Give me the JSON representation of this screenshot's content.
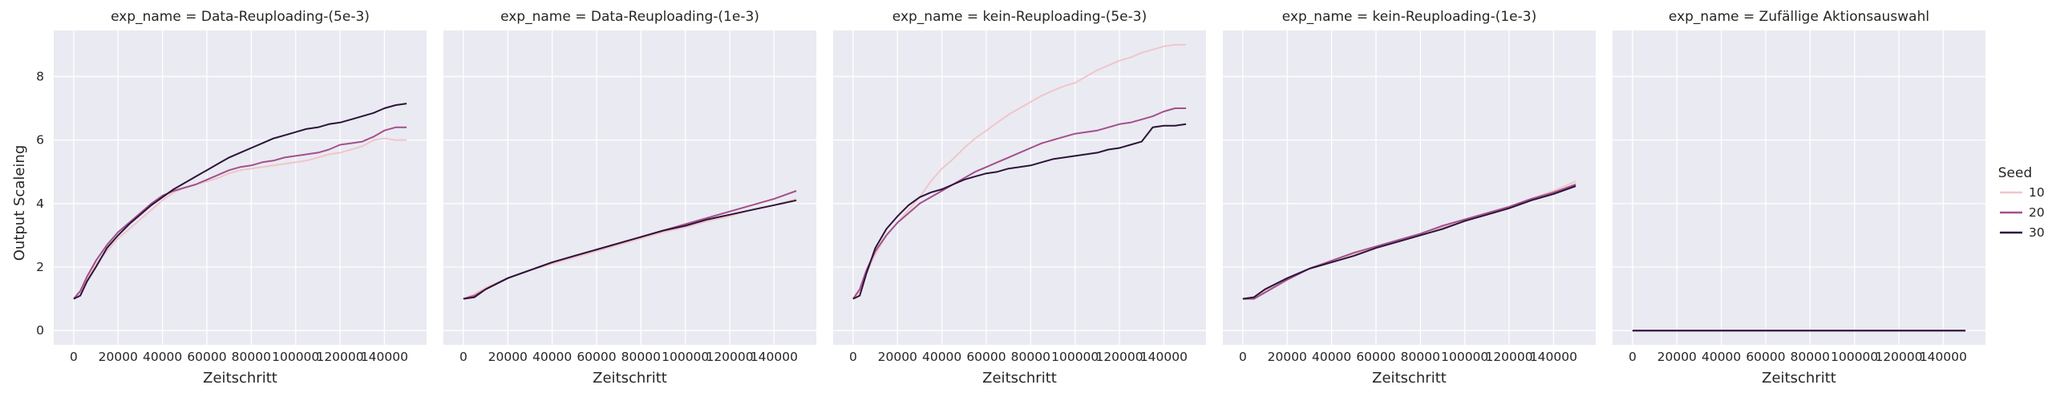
{
  "chart_data": {
    "type": "line",
    "facet_var": "exp_name",
    "xlabel": "Zeitschritt",
    "ylabel": "Output Scaleing",
    "xlim": [
      -9000,
      159000
    ],
    "ylim": [
      -0.45,
      9.45
    ],
    "xticks": [
      0,
      20000,
      40000,
      60000,
      80000,
      100000,
      120000,
      140000
    ],
    "yticks": [
      0,
      2,
      4,
      6,
      8
    ],
    "grid": true,
    "legend": {
      "title": "Seed",
      "placement": "right",
      "entries": [
        {
          "label": "10",
          "color": "#f0c6c9"
        },
        {
          "label": "20",
          "color": "#a3508c"
        },
        {
          "label": "30",
          "color": "#2b1339"
        }
      ]
    },
    "panels": [
      {
        "title": "exp_name = Data-Reuploading-(5e-3)",
        "series": [
          {
            "name": "10",
            "x": [
              0,
              3000,
              6000,
              10000,
              15000,
              20000,
              25000,
              30000,
              35000,
              40000,
              45000,
              50000,
              55000,
              60000,
              65000,
              70000,
              75000,
              80000,
              85000,
              90000,
              95000,
              100000,
              105000,
              110000,
              115000,
              120000,
              125000,
              130000,
              135000,
              140000,
              145000,
              150000
            ],
            "y": [
              1.0,
              1.2,
              1.6,
              2.1,
              2.5,
              2.9,
              3.2,
              3.5,
              3.8,
              4.1,
              4.35,
              4.5,
              4.6,
              4.7,
              4.8,
              4.95,
              5.05,
              5.1,
              5.15,
              5.2,
              5.25,
              5.3,
              5.35,
              5.45,
              5.55,
              5.6,
              5.7,
              5.8,
              6.0,
              6.05,
              6.0,
              6.0
            ]
          },
          {
            "name": "20",
            "x": [
              0,
              3000,
              6000,
              10000,
              15000,
              20000,
              25000,
              30000,
              35000,
              40000,
              45000,
              50000,
              55000,
              60000,
              65000,
              70000,
              75000,
              80000,
              85000,
              90000,
              95000,
              100000,
              105000,
              110000,
              115000,
              120000,
              125000,
              130000,
              135000,
              140000,
              145000,
              150000
            ],
            "y": [
              1.0,
              1.25,
              1.7,
              2.2,
              2.7,
              3.1,
              3.4,
              3.7,
              4.0,
              4.25,
              4.4,
              4.5,
              4.6,
              4.75,
              4.9,
              5.05,
              5.15,
              5.2,
              5.3,
              5.35,
              5.45,
              5.5,
              5.55,
              5.6,
              5.7,
              5.85,
              5.9,
              5.95,
              6.1,
              6.3,
              6.4,
              6.4
            ]
          },
          {
            "name": "30",
            "x": [
              0,
              3000,
              6000,
              10000,
              15000,
              20000,
              25000,
              30000,
              35000,
              40000,
              45000,
              50000,
              55000,
              60000,
              65000,
              70000,
              75000,
              80000,
              85000,
              90000,
              95000,
              100000,
              105000,
              110000,
              115000,
              120000,
              125000,
              130000,
              135000,
              140000,
              145000,
              150000
            ],
            "y": [
              1.0,
              1.1,
              1.55,
              2.0,
              2.6,
              3.0,
              3.35,
              3.65,
              3.95,
              4.2,
              4.45,
              4.65,
              4.85,
              5.05,
              5.25,
              5.45,
              5.6,
              5.75,
              5.9,
              6.05,
              6.15,
              6.25,
              6.35,
              6.4,
              6.5,
              6.55,
              6.65,
              6.75,
              6.85,
              7.0,
              7.1,
              7.15
            ]
          }
        ]
      },
      {
        "title": "exp_name = Data-Reuploading-(1e-3)",
        "series": [
          {
            "name": "10",
            "x": [
              0,
              5000,
              10000,
              20000,
              30000,
              40000,
              50000,
              60000,
              70000,
              80000,
              90000,
              100000,
              110000,
              120000,
              130000,
              140000,
              150000
            ],
            "y": [
              1.0,
              1.15,
              1.35,
              1.65,
              1.9,
              2.1,
              2.3,
              2.5,
              2.7,
              2.9,
              3.1,
              3.25,
              3.45,
              3.6,
              3.8,
              3.95,
              4.15
            ]
          },
          {
            "name": "20",
            "x": [
              0,
              5000,
              10000,
              20000,
              30000,
              40000,
              50000,
              60000,
              70000,
              80000,
              90000,
              100000,
              110000,
              120000,
              130000,
              140000,
              150000
            ],
            "y": [
              1.0,
              1.1,
              1.3,
              1.65,
              1.9,
              2.15,
              2.35,
              2.55,
              2.75,
              2.95,
              3.15,
              3.35,
              3.55,
              3.75,
              3.95,
              4.15,
              4.4
            ]
          },
          {
            "name": "30",
            "x": [
              0,
              5000,
              10000,
              20000,
              30000,
              40000,
              50000,
              60000,
              70000,
              80000,
              90000,
              100000,
              110000,
              120000,
              130000,
              140000,
              150000
            ],
            "y": [
              1.0,
              1.05,
              1.3,
              1.65,
              1.9,
              2.15,
              2.35,
              2.55,
              2.75,
              2.95,
              3.15,
              3.3,
              3.5,
              3.65,
              3.8,
              3.95,
              4.1
            ]
          }
        ]
      },
      {
        "title": "exp_name = kein-Reuploading-(5e-3)",
        "series": [
          {
            "name": "10",
            "x": [
              0,
              3000,
              6000,
              10000,
              15000,
              20000,
              25000,
              30000,
              35000,
              40000,
              45000,
              50000,
              55000,
              60000,
              65000,
              70000,
              75000,
              80000,
              85000,
              90000,
              95000,
              100000,
              105000,
              110000,
              115000,
              120000,
              125000,
              130000,
              135000,
              140000,
              145000,
              150000
            ],
            "y": [
              1.0,
              1.2,
              1.8,
              2.4,
              3.0,
              3.4,
              3.8,
              4.2,
              4.7,
              5.1,
              5.4,
              5.75,
              6.05,
              6.3,
              6.55,
              6.8,
              7.0,
              7.2,
              7.4,
              7.55,
              7.7,
              7.8,
              8.0,
              8.2,
              8.35,
              8.5,
              8.6,
              8.75,
              8.85,
              8.95,
              9.0,
              9.0
            ]
          },
          {
            "name": "20",
            "x": [
              0,
              3000,
              6000,
              10000,
              15000,
              20000,
              25000,
              30000,
              35000,
              40000,
              45000,
              50000,
              55000,
              60000,
              65000,
              70000,
              75000,
              80000,
              85000,
              90000,
              95000,
              100000,
              105000,
              110000,
              115000,
              120000,
              125000,
              130000,
              135000,
              140000,
              145000,
              150000
            ],
            "y": [
              1.0,
              1.3,
              1.9,
              2.5,
              3.0,
              3.4,
              3.7,
              4.0,
              4.2,
              4.4,
              4.6,
              4.8,
              5.0,
              5.15,
              5.3,
              5.45,
              5.6,
              5.75,
              5.9,
              6.0,
              6.1,
              6.2,
              6.25,
              6.3,
              6.4,
              6.5,
              6.55,
              6.65,
              6.75,
              6.9,
              7.0,
              7.0
            ]
          },
          {
            "name": "30",
            "x": [
              0,
              3000,
              6000,
              10000,
              15000,
              20000,
              25000,
              30000,
              35000,
              40000,
              45000,
              50000,
              55000,
              60000,
              65000,
              70000,
              75000,
              80000,
              85000,
              90000,
              95000,
              100000,
              105000,
              110000,
              115000,
              120000,
              125000,
              130000,
              135000,
              140000,
              145000,
              150000
            ],
            "y": [
              1.0,
              1.1,
              1.8,
              2.6,
              3.2,
              3.6,
              3.95,
              4.2,
              4.35,
              4.45,
              4.6,
              4.75,
              4.85,
              4.95,
              5.0,
              5.1,
              5.15,
              5.2,
              5.3,
              5.4,
              5.45,
              5.5,
              5.55,
              5.6,
              5.7,
              5.75,
              5.85,
              5.95,
              6.4,
              6.45,
              6.45,
              6.5
            ]
          }
        ]
      },
      {
        "title": "exp_name = kein-Reuploading-(1e-3)",
        "series": [
          {
            "name": "10",
            "x": [
              0,
              5000,
              10000,
              20000,
              30000,
              40000,
              50000,
              60000,
              70000,
              80000,
              90000,
              100000,
              110000,
              120000,
              130000,
              140000,
              150000
            ],
            "y": [
              1.0,
              1.05,
              1.25,
              1.6,
              1.95,
              2.2,
              2.4,
              2.6,
              2.8,
              3.0,
              3.25,
              3.45,
              3.65,
              3.9,
              4.15,
              4.4,
              4.7
            ]
          },
          {
            "name": "20",
            "x": [
              0,
              5000,
              10000,
              20000,
              30000,
              40000,
              50000,
              60000,
              70000,
              80000,
              90000,
              100000,
              110000,
              120000,
              130000,
              140000,
              150000
            ],
            "y": [
              1.0,
              1.0,
              1.2,
              1.6,
              1.95,
              2.2,
              2.45,
              2.65,
              2.85,
              3.05,
              3.3,
              3.5,
              3.7,
              3.9,
              4.15,
              4.35,
              4.6
            ]
          },
          {
            "name": "30",
            "x": [
              0,
              5000,
              10000,
              20000,
              30000,
              40000,
              50000,
              60000,
              70000,
              80000,
              90000,
              100000,
              110000,
              120000,
              130000,
              140000,
              150000
            ],
            "y": [
              1.0,
              1.05,
              1.3,
              1.65,
              1.95,
              2.15,
              2.35,
              2.6,
              2.8,
              3.0,
              3.2,
              3.45,
              3.65,
              3.85,
              4.1,
              4.3,
              4.55
            ]
          }
        ]
      },
      {
        "title": "exp_name = Zufällige Aktionsauswahl",
        "series": [
          {
            "name": "10",
            "x": [
              0,
              150000
            ],
            "y": [
              0,
              0
            ]
          },
          {
            "name": "20",
            "x": [
              0,
              150000
            ],
            "y": [
              0,
              0
            ]
          },
          {
            "name": "30",
            "x": [
              0,
              150000
            ],
            "y": [
              0,
              0
            ]
          }
        ]
      }
    ]
  }
}
